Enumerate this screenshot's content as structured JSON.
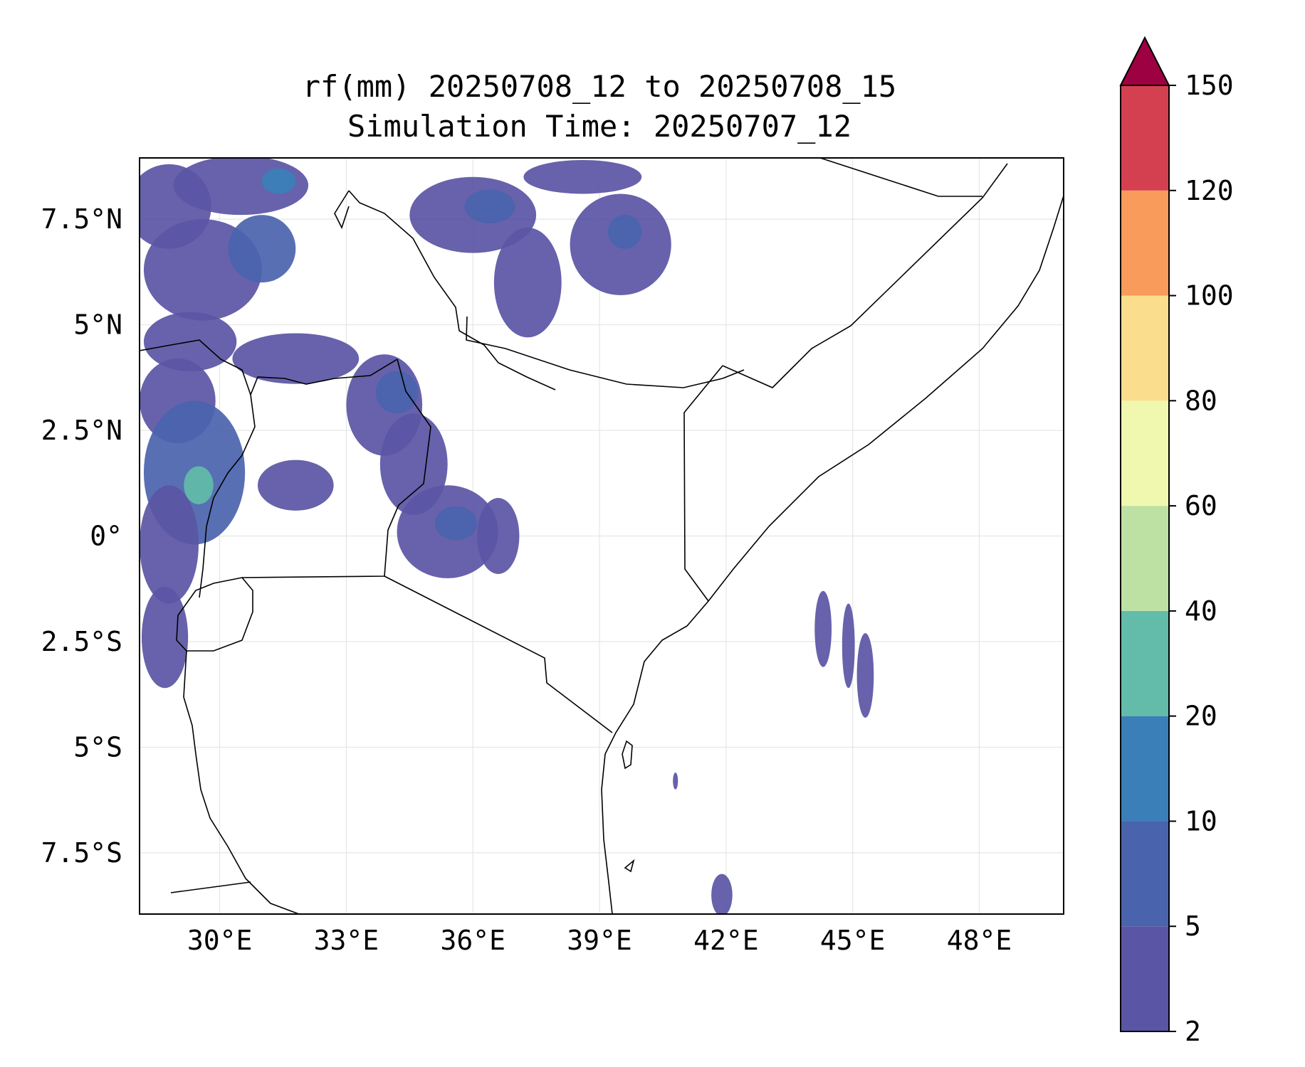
{
  "title_line1": "rf(mm) 20250708_12 to 20250708_15",
  "title_line2": "Simulation Time: 20250707_12",
  "map": {
    "lon_range": [
      28.1,
      50.0
    ],
    "lat_range": [
      -8.95,
      8.95
    ],
    "lon_ticks": [
      {
        "value": 30,
        "label": "30°E"
      },
      {
        "value": 33,
        "label": "33°E"
      },
      {
        "value": 36,
        "label": "36°E"
      },
      {
        "value": 39,
        "label": "39°E"
      },
      {
        "value": 42,
        "label": "42°E"
      },
      {
        "value": 45,
        "label": "45°E"
      },
      {
        "value": 48,
        "label": "48°E"
      }
    ],
    "lat_ticks": [
      {
        "value": 7.5,
        "label": "7.5°N"
      },
      {
        "value": 5,
        "label": "5°N"
      },
      {
        "value": 2.5,
        "label": "2.5°N"
      },
      {
        "value": 0,
        "label": "0°"
      },
      {
        "value": -2.5,
        "label": "2.5°S"
      },
      {
        "value": -5,
        "label": "5°S"
      },
      {
        "value": -7.5,
        "label": "7.5°S"
      }
    ],
    "rain_patches": [
      {
        "lon": 28.8,
        "lat": 7.8,
        "rlon": 1.0,
        "rlat": 1.0,
        "level": 0
      },
      {
        "lon": 30.5,
        "lat": 8.3,
        "rlon": 1.6,
        "rlat": 0.7,
        "level": 0
      },
      {
        "lon": 31.4,
        "lat": 8.4,
        "rlon": 0.4,
        "rlat": 0.3,
        "level": 2
      },
      {
        "lon": 29.6,
        "lat": 6.3,
        "rlon": 1.4,
        "rlat": 1.2,
        "level": 0
      },
      {
        "lon": 31.0,
        "lat": 6.8,
        "rlon": 0.8,
        "rlat": 0.8,
        "level": 1
      },
      {
        "lon": 29.3,
        "lat": 4.6,
        "rlon": 1.1,
        "rlat": 0.7,
        "level": 0
      },
      {
        "lon": 31.8,
        "lat": 4.2,
        "rlon": 1.5,
        "rlat": 0.6,
        "level": 0
      },
      {
        "lon": 29.0,
        "lat": 3.2,
        "rlon": 0.9,
        "rlat": 1.0,
        "level": 0
      },
      {
        "lon": 29.4,
        "lat": 1.5,
        "rlon": 1.2,
        "rlat": 1.7,
        "level": 1
      },
      {
        "lon": 29.5,
        "lat": 1.2,
        "rlon": 0.35,
        "rlat": 0.45,
        "level": 3
      },
      {
        "lon": 28.8,
        "lat": -0.2,
        "rlon": 0.7,
        "rlat": 1.4,
        "level": 0
      },
      {
        "lon": 28.7,
        "lat": -2.4,
        "rlon": 0.55,
        "rlat": 1.2,
        "level": 0
      },
      {
        "lon": 31.8,
        "lat": 1.2,
        "rlon": 0.9,
        "rlat": 0.6,
        "level": 0
      },
      {
        "lon": 33.9,
        "lat": 3.1,
        "rlon": 0.9,
        "rlat": 1.2,
        "level": 0
      },
      {
        "lon": 34.2,
        "lat": 3.4,
        "rlon": 0.5,
        "rlat": 0.5,
        "level": 1
      },
      {
        "lon": 34.6,
        "lat": 1.7,
        "rlon": 0.8,
        "rlat": 1.2,
        "level": 0
      },
      {
        "lon": 35.4,
        "lat": 0.1,
        "rlon": 1.2,
        "rlat": 1.1,
        "level": 0
      },
      {
        "lon": 35.6,
        "lat": 0.3,
        "rlon": 0.5,
        "rlat": 0.4,
        "level": 1
      },
      {
        "lon": 36.6,
        "lat": 0.0,
        "rlon": 0.5,
        "rlat": 0.9,
        "level": 0
      },
      {
        "lon": 36.0,
        "lat": 7.6,
        "rlon": 1.5,
        "rlat": 0.9,
        "level": 0
      },
      {
        "lon": 36.4,
        "lat": 7.8,
        "rlon": 0.6,
        "rlat": 0.4,
        "level": 1
      },
      {
        "lon": 37.3,
        "lat": 6.0,
        "rlon": 0.8,
        "rlat": 1.3,
        "level": 0
      },
      {
        "lon": 39.5,
        "lat": 6.9,
        "rlon": 1.2,
        "rlat": 1.2,
        "level": 0
      },
      {
        "lon": 39.6,
        "lat": 7.2,
        "rlon": 0.4,
        "rlat": 0.4,
        "level": 1
      },
      {
        "lon": 38.6,
        "lat": 8.5,
        "rlon": 1.4,
        "rlat": 0.4,
        "level": 0
      },
      {
        "lon": 44.3,
        "lat": -2.2,
        "rlon": 0.2,
        "rlat": 0.9,
        "level": 0
      },
      {
        "lon": 44.9,
        "lat": -2.6,
        "rlon": 0.15,
        "rlat": 1.0,
        "level": 0
      },
      {
        "lon": 45.3,
        "lat": -3.3,
        "rlon": 0.2,
        "rlat": 1.0,
        "level": 0
      },
      {
        "lon": 41.9,
        "lat": -8.5,
        "rlon": 0.25,
        "rlat": 0.5,
        "level": 0
      },
      {
        "lon": 40.8,
        "lat": -5.8,
        "rlon": 0.06,
        "rlat": 0.2,
        "level": 0
      }
    ]
  },
  "colorbar": {
    "levels": [
      "2",
      "5",
      "10",
      "20",
      "40",
      "60",
      "80",
      "100",
      "120",
      "150"
    ],
    "colors": [
      "#5a55a4",
      "#4a63ad",
      "#3a7fb8",
      "#62bca9",
      "#bde1a3",
      "#f0f7af",
      "#fbde8d",
      "#f99b5a",
      "#d4404f"
    ],
    "extend_color": "#9e0142"
  }
}
